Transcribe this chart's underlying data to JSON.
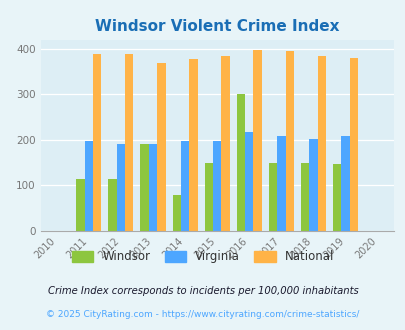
{
  "title": "Windsor Violent Crime Index",
  "years": [
    2011,
    2012,
    2013,
    2014,
    2015,
    2016,
    2017,
    2018,
    2019
  ],
  "windsor": [
    115,
    115,
    192,
    78,
    150,
    300,
    150,
    149,
    147
  ],
  "virginia": [
    198,
    192,
    190,
    198,
    198,
    218,
    208,
    202,
    208
  ],
  "national": [
    388,
    388,
    368,
    378,
    385,
    398,
    395,
    383,
    379
  ],
  "windsor_color": "#8dc63f",
  "virginia_color": "#4da6ff",
  "national_color": "#ffb347",
  "bg_color": "#e8f4f8",
  "plot_bg_color": "#ddeef5",
  "title_color": "#1a6eb5",
  "legend_labels": [
    "Windsor",
    "Virginia",
    "National"
  ],
  "xlim": [
    2009.5,
    2020.5
  ],
  "ylim": [
    0,
    420
  ],
  "yticks": [
    0,
    100,
    200,
    300,
    400
  ],
  "bar_width": 0.26,
  "footnote1": "Crime Index corresponds to incidents per 100,000 inhabitants",
  "footnote2": "© 2025 CityRating.com - https://www.cityrating.com/crime-statistics/",
  "footnote1_color": "#1a1a2e",
  "footnote2_color": "#4da6ff"
}
